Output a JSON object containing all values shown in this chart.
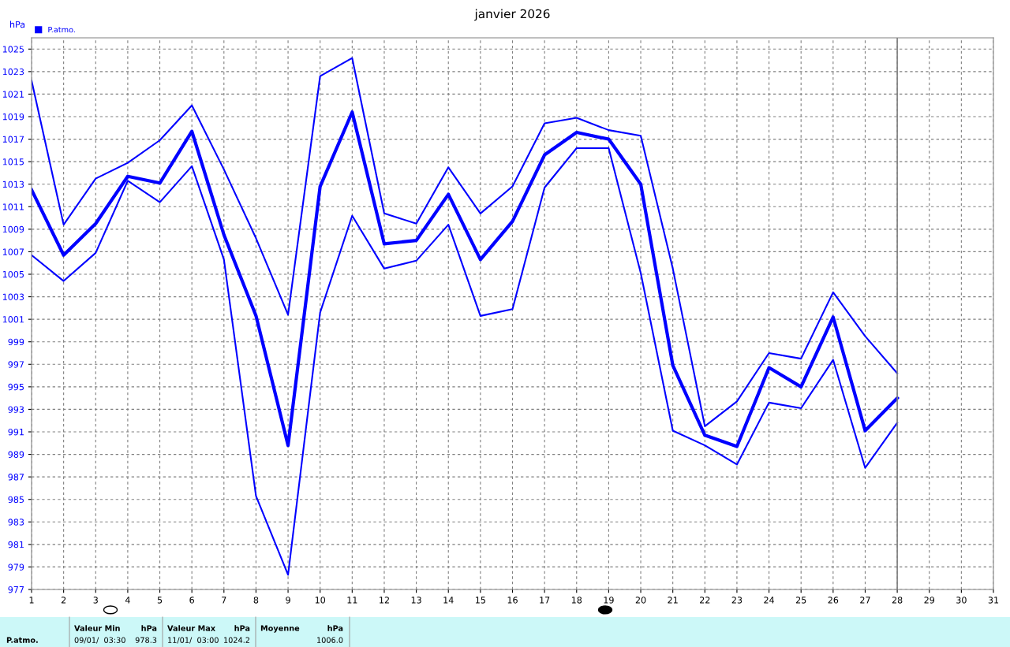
{
  "chart_data": {
    "type": "line",
    "title": "janvier 2026",
    "ylabel": "hPa",
    "x": [
      1,
      2,
      3,
      4,
      5,
      6,
      7,
      8,
      9,
      10,
      11,
      12,
      13,
      14,
      15,
      16,
      17,
      18,
      19,
      20,
      21,
      22,
      23,
      24,
      25,
      26,
      27,
      28
    ],
    "series": [
      {
        "name": "P.atmo.",
        "color": "#0000ff",
        "values": [
          1012.5,
          1006.7,
          1009.5,
          1013.7,
          1013.1,
          1017.7,
          1008.5,
          1001.3,
          989.8,
          1012.8,
          1019.4,
          1007.7,
          1008.0,
          1012.1,
          1006.3,
          1009.7,
          1015.6,
          1017.6,
          1017.0,
          1013.0,
          996.9,
          990.7,
          989.7,
          996.7,
          995.0,
          1001.2,
          991.1,
          994.0
        ]
      },
      {
        "color": "#0000ff",
        "values": [
          1022.2,
          1009.4,
          1013.5,
          1014.9,
          1016.9,
          1020.0,
          1014.3,
          1008.2,
          1001.4,
          1022.6,
          1024.2,
          1010.4,
          1009.5,
          1014.5,
          1010.4,
          1012.8,
          1018.4,
          1018.9,
          1017.8,
          1017.3,
          1005.5,
          991.5,
          993.7,
          998.0,
          997.5,
          1003.4,
          999.5,
          996.2
        ]
      },
      {
        "color": "#0000ff",
        "values": [
          1006.7,
          1004.4,
          1006.9,
          1013.3,
          1011.4,
          1014.6,
          1006.3,
          985.3,
          978.3,
          1001.6,
          1010.2,
          1005.5,
          1006.2,
          1009.4,
          1001.3,
          1001.9,
          1012.7,
          1016.2,
          1016.2,
          1005.1,
          991.1,
          989.8,
          988.1,
          993.6,
          993.1,
          997.4,
          987.8,
          991.8
        ]
      }
    ],
    "xlim": [
      1,
      31
    ],
    "xticks": [
      1,
      2,
      3,
      4,
      5,
      6,
      7,
      8,
      9,
      10,
      11,
      12,
      13,
      14,
      15,
      16,
      17,
      18,
      19,
      20,
      21,
      22,
      23,
      24,
      25,
      26,
      27,
      28,
      29,
      30,
      31
    ],
    "ylim": [
      977,
      1026
    ],
    "yticks": [
      977,
      979,
      981,
      983,
      985,
      987,
      989,
      991,
      993,
      995,
      997,
      999,
      1001,
      1003,
      1005,
      1007,
      1009,
      1011,
      1013,
      1015,
      1017,
      1019,
      1021,
      1023,
      1025
    ],
    "grid": true,
    "legend": "top left",
    "marker": "none",
    "line_style": "solid",
    "ref_lines": [
      {
        "axis": "x",
        "value": 28,
        "color": "#808080"
      }
    ],
    "annotations": [
      "P.atmo.",
      "Valeur Min",
      "hPa",
      "09/01/  03:30",
      "978.3",
      "Valeur Max",
      "hPa",
      "11/01/  03:00",
      "1024.2",
      "Moyenne",
      "hPa",
      "1006.0"
    ]
  }
}
